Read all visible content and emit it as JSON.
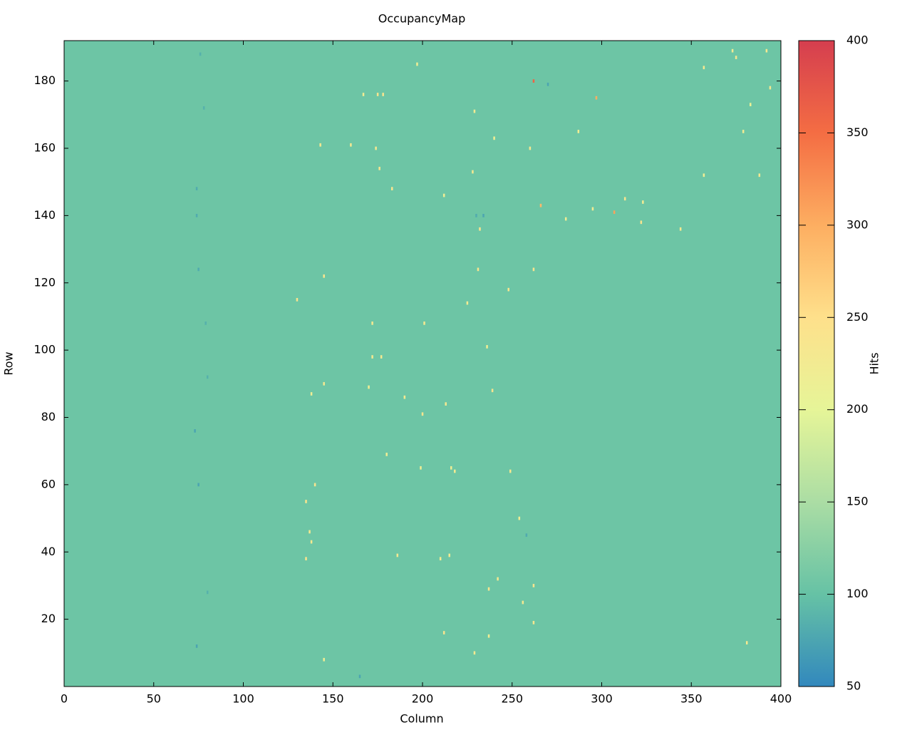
{
  "chart_data": {
    "type": "heatmap",
    "title": "OccupancyMap",
    "x_label": "Column",
    "y_label": "Row",
    "colorbar_label": "Hits",
    "xlim": [
      0,
      400
    ],
    "xticks": [
      0,
      50,
      100,
      150,
      200,
      250,
      300,
      350,
      400
    ],
    "ylim": [
      0,
      192
    ],
    "yticks": [
      20,
      40,
      60,
      80,
      100,
      120,
      140,
      160,
      180
    ],
    "clim": [
      50,
      400
    ],
    "cticks": [
      50,
      100,
      150,
      200,
      250,
      300,
      350,
      400
    ],
    "colormap": [
      "#3288bd",
      "#66c2a5",
      "#abdda4",
      "#e6f598",
      "#fee08b",
      "#fdae61",
      "#f46d43",
      "#d53e4f"
    ],
    "background": 105,
    "x": [
      262,
      307,
      297,
      266,
      212,
      175,
      178,
      392,
      394,
      145,
      130,
      213,
      200,
      262,
      237,
      256,
      165,
      74,
      74,
      73,
      75,
      75,
      74,
      76,
      78,
      79,
      80,
      80,
      234,
      230,
      270,
      258,
      174,
      160,
      143,
      176,
      183,
      228,
      260,
      313,
      322,
      344,
      357,
      388,
      379,
      383,
      212,
      239,
      177,
      172,
      190,
      170,
      145,
      138,
      199,
      180,
      135,
      140,
      138,
      137,
      135,
      186,
      210,
      215,
      254,
      242,
      237,
      229,
      262,
      145,
      231,
      262,
      248,
      172,
      201,
      225,
      236,
      232,
      280,
      295,
      323,
      357,
      375,
      373,
      381,
      249,
      216,
      218,
      197,
      167,
      240,
      229,
      287
    ],
    "y": [
      180,
      141,
      175,
      143,
      16,
      176,
      176,
      189,
      178,
      122,
      115,
      84,
      81,
      30,
      29,
      25,
      3,
      140,
      148,
      76,
      60,
      124,
      12,
      188,
      172,
      108,
      92,
      28,
      140,
      140,
      179,
      45,
      160,
      161,
      161,
      154,
      148,
      153,
      160,
      145,
      138,
      136,
      152,
      152,
      165,
      173,
      146,
      88,
      98,
      98,
      86,
      89,
      90,
      87,
      65,
      69,
      55,
      60,
      43,
      46,
      38,
      39,
      38,
      39,
      50,
      32,
      15,
      10,
      19,
      8,
      124,
      124,
      118,
      108,
      108,
      114,
      101,
      136,
      139,
      142,
      144,
      184,
      187,
      189,
      13,
      64,
      65,
      64,
      185,
      176,
      163,
      171,
      165
    ],
    "values": [
      360,
      310,
      300,
      290,
      240,
      240,
      240,
      230,
      230,
      240,
      240,
      230,
      240,
      240,
      235,
      230,
      75,
      80,
      80,
      75,
      75,
      80,
      75,
      85,
      85,
      85,
      85,
      85,
      75,
      80,
      75,
      80,
      230,
      230,
      230,
      235,
      240,
      230,
      230,
      240,
      240,
      230,
      220,
      230,
      225,
      210,
      220,
      240,
      230,
      230,
      230,
      220,
      230,
      220,
      220,
      220,
      240,
      240,
      230,
      230,
      240,
      230,
      225,
      225,
      220,
      230,
      220,
      230,
      235,
      220,
      240,
      240,
      235,
      230,
      230,
      225,
      220,
      240,
      220,
      225,
      225,
      230,
      230,
      225,
      230,
      230,
      220,
      225,
      220,
      225,
      220,
      225,
      220
    ]
  }
}
